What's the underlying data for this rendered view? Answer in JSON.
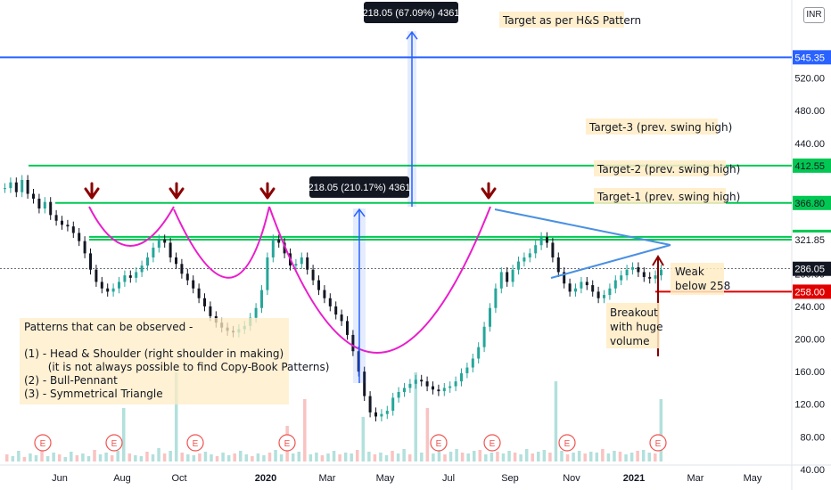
{
  "currency": "INR",
  "chart_data": {
    "type": "line",
    "x_labels": [
      "Jun",
      "Aug",
      "Oct",
      "2020",
      "Mar",
      "May",
      "Jul",
      "Sep",
      "Nov",
      "2021",
      "Mar",
      "May"
    ],
    "y_ticks": [
      40,
      80,
      120,
      160,
      200,
      240,
      280,
      440,
      480,
      520
    ],
    "ylim": [
      18,
      575
    ],
    "price_series": {
      "name": "",
      "points": [
        [
          0,
          385
        ],
        [
          1,
          392
        ],
        [
          2,
          380
        ],
        [
          3,
          395
        ],
        [
          4,
          378
        ],
        [
          5,
          372
        ],
        [
          6,
          360
        ],
        [
          7,
          368
        ],
        [
          8,
          352
        ],
        [
          9,
          345
        ],
        [
          10,
          340
        ],
        [
          11,
          338
        ],
        [
          12,
          330
        ],
        [
          13,
          320
        ],
        [
          14,
          305
        ],
        [
          15,
          285
        ],
        [
          16,
          270
        ],
        [
          17,
          262
        ],
        [
          18,
          258
        ],
        [
          19,
          262
        ],
        [
          20,
          270
        ],
        [
          21,
          278
        ],
        [
          22,
          275
        ],
        [
          23,
          282
        ],
        [
          24,
          290
        ],
        [
          25,
          300
        ],
        [
          26,
          312
        ],
        [
          27,
          322
        ],
        [
          28,
          318
        ],
        [
          29,
          300
        ],
        [
          30,
          292
        ],
        [
          31,
          280
        ],
        [
          32,
          272
        ],
        [
          33,
          262
        ],
        [
          34,
          250
        ],
        [
          35,
          240
        ],
        [
          36,
          228
        ],
        [
          37,
          220
        ],
        [
          38,
          214
        ],
        [
          39,
          210
        ],
        [
          40,
          208
        ],
        [
          41,
          212
        ],
        [
          42,
          216
        ],
        [
          43,
          226
        ],
        [
          44,
          238
        ],
        [
          45,
          260
        ],
        [
          46,
          300
        ],
        [
          47,
          322
        ],
        [
          48,
          318
        ],
        [
          49,
          305
        ],
        [
          50,
          290
        ],
        [
          51,
          292
        ],
        [
          52,
          300
        ],
        [
          53,
          285
        ],
        [
          54,
          272
        ],
        [
          55,
          260
        ],
        [
          56,
          250
        ],
        [
          57,
          240
        ],
        [
          58,
          230
        ],
        [
          59,
          222
        ],
        [
          60,
          205
        ],
        [
          61,
          185
        ],
        [
          62,
          160
        ],
        [
          63,
          130
        ],
        [
          64,
          110
        ],
        [
          65,
          105
        ],
        [
          66,
          108
        ],
        [
          67,
          112
        ],
        [
          68,
          128
        ],
        [
          69,
          135
        ],
        [
          70,
          140
        ],
        [
          71,
          145
        ],
        [
          72,
          150
        ],
        [
          73,
          148
        ],
        [
          74,
          142
        ],
        [
          75,
          138
        ],
        [
          76,
          136
        ],
        [
          77,
          140
        ],
        [
          78,
          142
        ],
        [
          79,
          148
        ],
        [
          80,
          158
        ],
        [
          81,
          165
        ],
        [
          82,
          176
        ],
        [
          83,
          190
        ],
        [
          84,
          215
        ],
        [
          85,
          238
        ],
        [
          86,
          262
        ],
        [
          87,
          282
        ],
        [
          88,
          270
        ],
        [
          89,
          285
        ],
        [
          90,
          295
        ],
        [
          91,
          300
        ],
        [
          92,
          305
        ],
        [
          93,
          315
        ],
        [
          94,
          325
        ],
        [
          95,
          318
        ],
        [
          96,
          300
        ],
        [
          97,
          282
        ],
        [
          98,
          268
        ],
        [
          99,
          258
        ],
        [
          100,
          262
        ],
        [
          101,
          270
        ],
        [
          102,
          266
        ],
        [
          103,
          258
        ],
        [
          104,
          250
        ],
        [
          105,
          254
        ],
        [
          106,
          262
        ],
        [
          107,
          272
        ],
        [
          108,
          278
        ],
        [
          109,
          285
        ],
        [
          110,
          288
        ],
        [
          111,
          282
        ],
        [
          112,
          276
        ],
        [
          113,
          274
        ],
        [
          114,
          278
        ],
        [
          115,
          285
        ]
      ]
    },
    "horizontal_levels": [
      {
        "value": 545.35,
        "label": "545.35",
        "color": "#2962ff"
      },
      {
        "value": 412.55,
        "label": "412.55",
        "color": "#00c853"
      },
      {
        "value": 366.8,
        "label": "366.80",
        "color": "#00c853"
      },
      {
        "value": 325.2,
        "label": "325.20",
        "color": "#00c853"
      },
      {
        "value": 321.85,
        "label": "321.85",
        "color": "#00c853"
      },
      {
        "value": 286.05,
        "label": "286.05",
        "color": "#131722"
      },
      {
        "value": 258.0,
        "label": "258.00",
        "color": "#e00000"
      }
    ],
    "annotations": {
      "measure_top": "218.05 (67.09%) 4361",
      "measure_mid": "218.05 (210.17%) 4361",
      "target_hs": "Target as per H&S Pattern",
      "target3": "Target-3 (prev. swing high)",
      "target2": "Target-2 (prev. swing high)",
      "target1": "Target-1 (prev. swing high)",
      "weak_line1": "Weak",
      "weak_line2": "below 258",
      "breakout_line1": "Breakout",
      "breakout_line2": "with huge",
      "breakout_line3": "volume"
    },
    "event_marker": "E",
    "colors": {
      "up": "#26a69a",
      "down": "#131722",
      "arc": "#e91ecb",
      "arrow": "#8b0000",
      "triangle": "#4a90e2",
      "green": "#00c853",
      "blue": "#2962ff",
      "red": "#e00000"
    }
  },
  "notes": {
    "title": "Patterns that can be observed -",
    "line1": "(1) - Head & Shoulder (right shoulder in making)",
    "line2": "       (it is not always possible to find Copy-Book Patterns)",
    "line3": "(2) - Bull-Pennant",
    "line4": "(3) - Symmetrical Triangle"
  }
}
